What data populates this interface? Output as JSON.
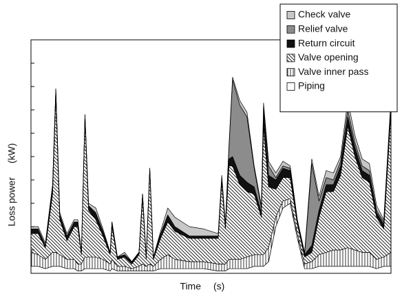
{
  "chart_data": {
    "type": "stacked_area",
    "y_label": "Loss power",
    "y_unit": "(kW)",
    "x_label": "Time",
    "x_unit": "(s)",
    "x": [
      0,
      2,
      4,
      6,
      6.9,
      8,
      10,
      12,
      13,
      14,
      15,
      16,
      18,
      20,
      22,
      22.5,
      24,
      26,
      28,
      30,
      31,
      32,
      33,
      34,
      36,
      38,
      40,
      44,
      48,
      52,
      53,
      54,
      55,
      56,
      58,
      60,
      62,
      64,
      64.6,
      66,
      68,
      70,
      72,
      74,
      76,
      78,
      80,
      82,
      84,
      86,
      88,
      90,
      92,
      94,
      96,
      98,
      100
    ],
    "xlim": [
      0,
      100
    ],
    "ylim": [
      0,
      10
    ],
    "yticks": [
      0,
      1,
      2,
      3,
      4,
      5,
      6,
      7,
      8,
      9,
      10
    ],
    "legend": "top-right",
    "series": [
      {
        "name": "Check valve",
        "color": "#c8c8c8",
        "values": [
          0.1,
          0.1,
          0.1,
          0.1,
          0,
          0.1,
          0.1,
          0.1,
          0.1,
          0,
          0,
          0.1,
          0.2,
          0.1,
          0,
          0,
          0,
          0.1,
          0,
          0,
          0,
          0,
          0,
          0,
          0.1,
          0.3,
          0.4,
          0.4,
          0.3,
          0.1,
          0.1,
          0,
          0.1,
          0.1,
          0.2,
          0.2,
          0.1,
          0.1,
          0.2,
          0.2,
          0.2,
          0.2,
          0.1,
          0.1,
          0.1,
          0.2,
          0.2,
          0.3,
          0.3,
          0.2,
          0.4,
          0.3,
          0.3,
          0.3,
          0.2,
          0.1,
          0.2
        ]
      },
      {
        "name": "Relief valve",
        "color": "#8c8c8c",
        "values": [
          0,
          0,
          0,
          0,
          0,
          0,
          0,
          0,
          0,
          0,
          0,
          0,
          0,
          0,
          0,
          0,
          0,
          0,
          0,
          0,
          0,
          0,
          0,
          0,
          0,
          0,
          0,
          0,
          0,
          0,
          0,
          0,
          0.5,
          3.3,
          3.0,
          2.8,
          0.8,
          0.2,
          0.3,
          0.4,
          0.1,
          0.1,
          0.1,
          0,
          0,
          3.5,
          0.4,
          0.3,
          0.2,
          0.2,
          0.3,
          0.2,
          0.2,
          0.2,
          0.1,
          0.1,
          0
        ]
      },
      {
        "name": "Return circuit",
        "color": "#111111",
        "values": [
          0.2,
          0.2,
          0.1,
          0.3,
          0.3,
          0.2,
          0.2,
          0.2,
          0.2,
          0.1,
          0.2,
          0.2,
          0.3,
          0.2,
          0.1,
          0.2,
          0.1,
          0.1,
          0.1,
          0.1,
          0.2,
          0.1,
          0.1,
          0.1,
          0.2,
          0.3,
          0.2,
          0.1,
          0.1,
          0.1,
          0.2,
          0.2,
          0.3,
          0.4,
          0.4,
          0.4,
          0.3,
          0.2,
          0.5,
          0.5,
          0.4,
          0.4,
          0.3,
          0.1,
          0.1,
          0.3,
          0.3,
          0.3,
          0.3,
          0.4,
          0.4,
          0.4,
          0.3,
          0.3,
          0.2,
          0.2,
          0.4
        ]
      },
      {
        "name": "Valve opening",
        "color": "#ffffff",
        "pattern": "diagonal",
        "values": [
          0.8,
          0.9,
          0.5,
          2.5,
          6.7,
          1.5,
          0.8,
          1.4,
          1.6,
          0.4,
          5.9,
          2.0,
          1.6,
          1.0,
          0.4,
          1.4,
          0.3,
          0.4,
          0.2,
          0.5,
          2.8,
          0.3,
          4.0,
          0.3,
          0.9,
          1.4,
          1.2,
          1.0,
          1.0,
          1.1,
          3.5,
          1.5,
          4.0,
          4.0,
          3.2,
          2.8,
          2.6,
          1.6,
          5.5,
          2.6,
          1.2,
          1.0,
          0.9,
          0.4,
          0.3,
          0.4,
          1.6,
          2.6,
          2.5,
          3.2,
          5.2,
          4.0,
          3.2,
          3.0,
          1.8,
          1.2,
          6.0
        ]
      },
      {
        "name": "Valve inner pass",
        "color": "#ffffff",
        "pattern": "vertical",
        "values": [
          0.6,
          0.5,
          0.4,
          0.6,
          0.6,
          0.5,
          0.4,
          0.4,
          0.3,
          0.3,
          0.5,
          0.5,
          0.5,
          0.4,
          0.3,
          0.4,
          0.2,
          0.2,
          0.1,
          0.2,
          0.3,
          0.2,
          0.3,
          0.2,
          0.4,
          0.6,
          0.4,
          0.3,
          0.3,
          0.3,
          0.3,
          0.3,
          0.4,
          0.4,
          0.4,
          0.5,
          0.5,
          0.5,
          0.5,
          0.6,
          0.4,
          0.3,
          0.2,
          0.2,
          0.2,
          0.3,
          0.5,
          0.6,
          0.7,
          0.7,
          0.8,
          0.7,
          0.6,
          0.6,
          0.4,
          0.4,
          0.6
        ]
      },
      {
        "name": "Piping",
        "color": "#ffffff",
        "values": [
          0.3,
          0.3,
          0.2,
          0.3,
          0.3,
          0.3,
          0.2,
          0.2,
          0.1,
          0.1,
          0.2,
          0.2,
          0.2,
          0.2,
          0.1,
          0.2,
          0.1,
          0.1,
          0.1,
          0.1,
          0.1,
          0.1,
          0.1,
          0.1,
          0.2,
          0.2,
          0.2,
          0.2,
          0.2,
          0.1,
          0.1,
          0.1,
          0.2,
          0.2,
          0.2,
          0.2,
          0.3,
          0.3,
          0.3,
          0.5,
          2.0,
          2.8,
          3.0,
          1.5,
          0.2,
          0.2,
          0.3,
          0.3,
          0.3,
          0.3,
          0.3,
          0.3,
          0.3,
          0.3,
          0.2,
          0.3,
          0.3
        ]
      }
    ]
  }
}
